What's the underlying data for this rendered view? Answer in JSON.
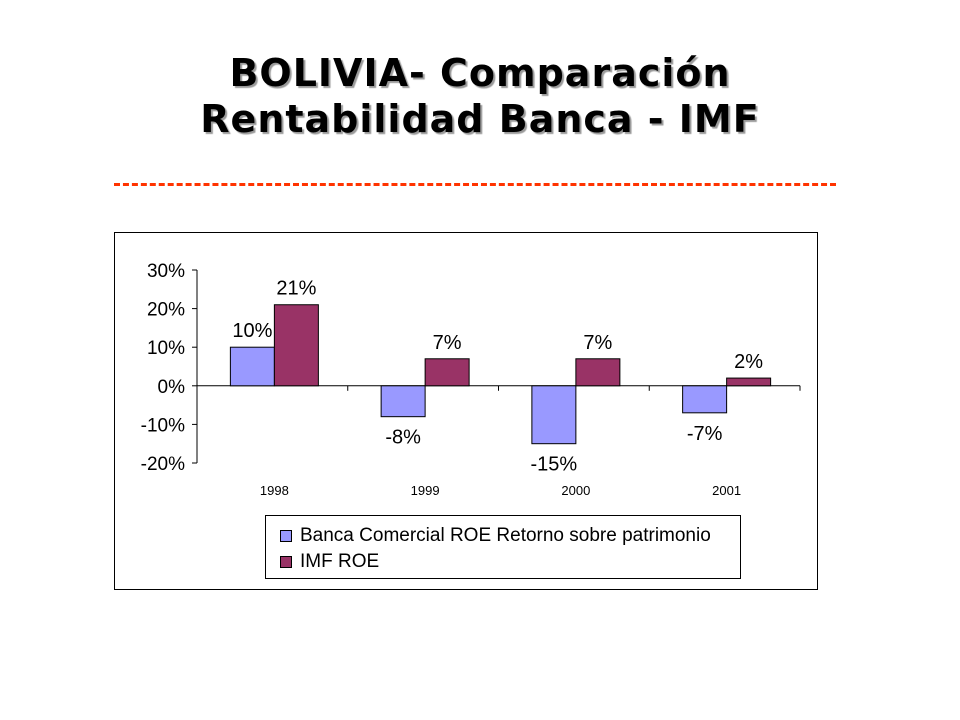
{
  "slide": {
    "title_line1": "BOLIVIA- Comparación",
    "title_line2": "Rentabilidad Banca - IMF"
  },
  "chart_data": {
    "type": "bar",
    "categories": [
      "1998",
      "1999",
      "2000",
      "2001"
    ],
    "series": [
      {
        "name": "Banca Comercial ROE Retorno sobre patrimonio",
        "values": [
          10,
          -8,
          -15,
          -7
        ],
        "labels": [
          "10%",
          "-8%",
          "-15%",
          "-7%"
        ],
        "color": "#9999ff"
      },
      {
        "name": "IMF ROE",
        "values": [
          21,
          7,
          7,
          2
        ],
        "labels": [
          "21%",
          "7%",
          "7%",
          "2%"
        ],
        "color": "#993366"
      }
    ],
    "yticks": [
      "30%",
      "20%",
      "10%",
      "0%",
      "-10%",
      "-20%"
    ],
    "ylim": [
      -20,
      30
    ],
    "xlabel": "",
    "ylabel": "",
    "legend_position": "bottom"
  }
}
